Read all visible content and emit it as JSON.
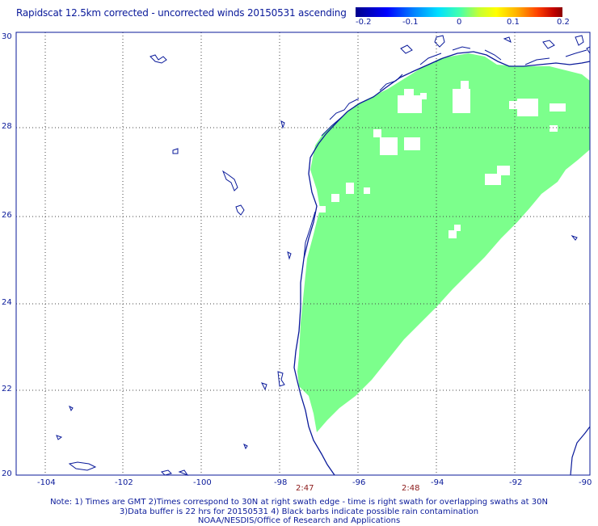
{
  "title": "Rapidscat 12.5km corrected - uncorrected winds 20150531 ascending",
  "colorbar": {
    "ticks": [
      "-0.2",
      "-0.1",
      "0",
      "0.1",
      "0.2"
    ]
  },
  "lat_labels": [
    "30",
    "28",
    "26",
    "24",
    "22",
    "20"
  ],
  "lon_labels": [
    "-104",
    "-102",
    "-100",
    "-98",
    "-96",
    "-94",
    "-92",
    "-90"
  ],
  "times": [
    "2:47",
    "2:48"
  ],
  "notes": {
    "line1": "Note: 1) Times are GMT 2)Times correspond to 30N at right swath edge - time is right swath for overlapping swaths at 30N",
    "line2": "3)Data buffer is 22 hrs for 20150531 4) Black barbs indicate possible rain contamination",
    "line3": "NOAA/NESDIS/Office of Research and Applications"
  },
  "colors": {
    "swath": "#7cff8c",
    "coast": "#0a1a9a",
    "grid": "#444444",
    "time_label": "#8b1a1a"
  }
}
